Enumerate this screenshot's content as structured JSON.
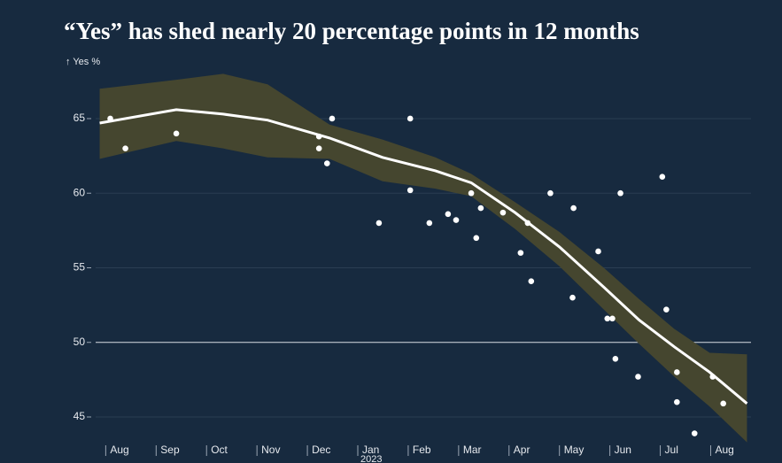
{
  "chart_data": {
    "type": "scatter",
    "title": "“Yes” has shed nearly 20 percentage points in 12 months",
    "y_label": "↑ Yes %",
    "x_year_label": "2023",
    "xlim": [
      -0.2,
      12.8
    ],
    "ylim": [
      43,
      68.5
    ],
    "xticks": [
      {
        "value": 0,
        "label": "Aug"
      },
      {
        "value": 1,
        "label": "Sep"
      },
      {
        "value": 2,
        "label": "Oct"
      },
      {
        "value": 3,
        "label": "Nov"
      },
      {
        "value": 4,
        "label": "Dec"
      },
      {
        "value": 5,
        "label": "Jan"
      },
      {
        "value": 6,
        "label": "Feb"
      },
      {
        "value": 7,
        "label": "Mar"
      },
      {
        "value": 8,
        "label": "Apr"
      },
      {
        "value": 9,
        "label": "May"
      },
      {
        "value": 10,
        "label": "Jun"
      },
      {
        "value": 11,
        "label": "Jul"
      },
      {
        "value": 12,
        "label": "Aug"
      }
    ],
    "yticks": [
      45,
      50,
      55,
      60,
      65
    ],
    "grid": true,
    "reference_y": 50,
    "point_color": "#ffffff",
    "line_color": "#ffffff",
    "band_color": "#45462f",
    "points": {
      "x": [
        0.09,
        0.39,
        1.4,
        4.23,
        4.23,
        4.39,
        4.49,
        5.42,
        6.04,
        6.04,
        6.42,
        6.79,
        6.95,
        7.25,
        7.44,
        7.35,
        7.88,
        8.23,
        8.37,
        8.44,
        8.82,
        9.28,
        9.26,
        9.77,
        9.95,
        10.05,
        10.11,
        10.21,
        10.56,
        11.04,
        11.12,
        11.33,
        11.33,
        11.68,
        12.04,
        12.25
      ],
      "y": [
        65,
        63,
        64,
        63.8,
        63,
        62,
        65,
        58,
        65,
        60.2,
        58,
        58.6,
        58.2,
        60,
        59,
        57,
        58.7,
        56,
        58,
        54.1,
        60,
        59,
        53,
        56.1,
        51.6,
        51.6,
        48.9,
        60,
        47.7,
        61.1,
        52.2,
        48,
        46,
        43.9,
        47.7,
        45.9
      ]
    },
    "trend": {
      "x": [
        -0.12,
        1.4,
        2.33,
        3.21,
        4.44,
        5.49,
        6.54,
        7.25,
        8.12,
        9.0,
        9.88,
        10.58,
        11.28,
        11.98,
        12.72
      ],
      "y": [
        64.7,
        65.6,
        65.3,
        64.9,
        63.7,
        62.4,
        61.5,
        60.7,
        58.7,
        56.4,
        53.7,
        51.5,
        49.7,
        48.0,
        45.9
      ],
      "upper": [
        67.0,
        67.6,
        68.0,
        67.3,
        64.6,
        63.6,
        62.4,
        61.3,
        59.4,
        57.4,
        55.0,
        52.9,
        50.9,
        49.3,
        49.2
      ],
      "lower": [
        62.3,
        63.5,
        63.0,
        62.4,
        62.3,
        60.8,
        60.3,
        59.8,
        57.6,
        55.1,
        52.2,
        49.9,
        47.7,
        45.7,
        43.3
      ]
    }
  }
}
